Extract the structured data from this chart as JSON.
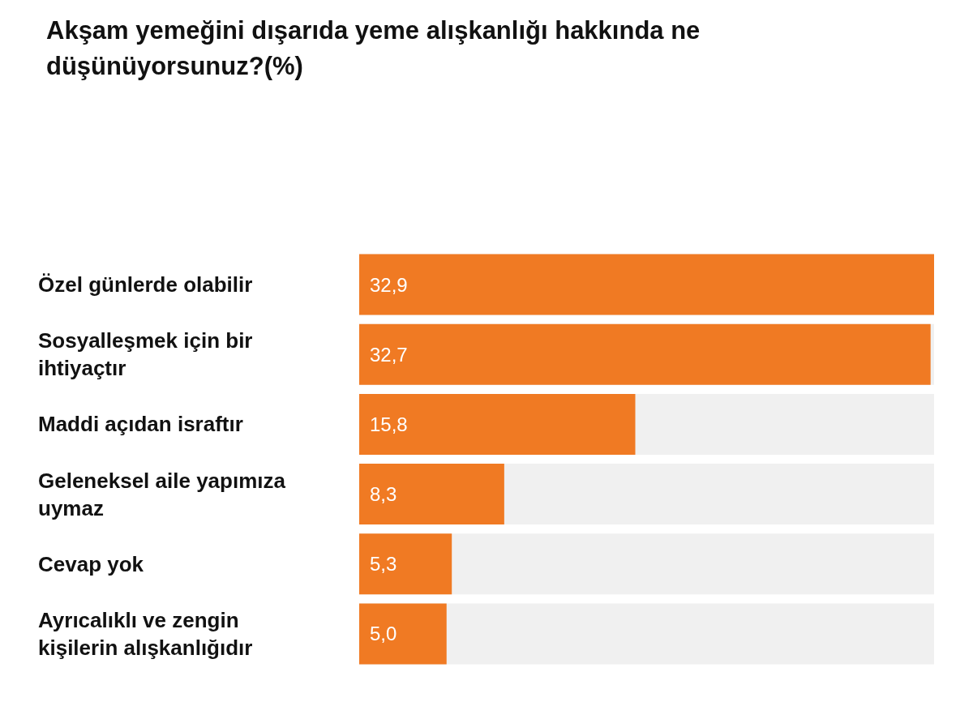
{
  "chart_data": {
    "type": "bar",
    "orientation": "horizontal",
    "title": "Akşam yemeğini dışarıda yeme alışkanlığı hakkında ne düşünüyorsunuz?(%)",
    "categories": [
      "Özel günlerde olabilir",
      "Sosyalleşmek için bir ihtiyaçtır",
      "Maddi açıdan israftır",
      "Geleneksel aile yapımıza uymaz",
      "Cevap yok",
      "Ayrıcalıklı ve zengin kişilerin alışkanlığıdır"
    ],
    "values": [
      32.9,
      32.7,
      15.8,
      8.3,
      5.3,
      5.0
    ],
    "value_labels": [
      "32,9",
      "32,7",
      "15,8",
      "8,3",
      "5,3",
      "5,0"
    ],
    "color": "#f07a23"
  }
}
